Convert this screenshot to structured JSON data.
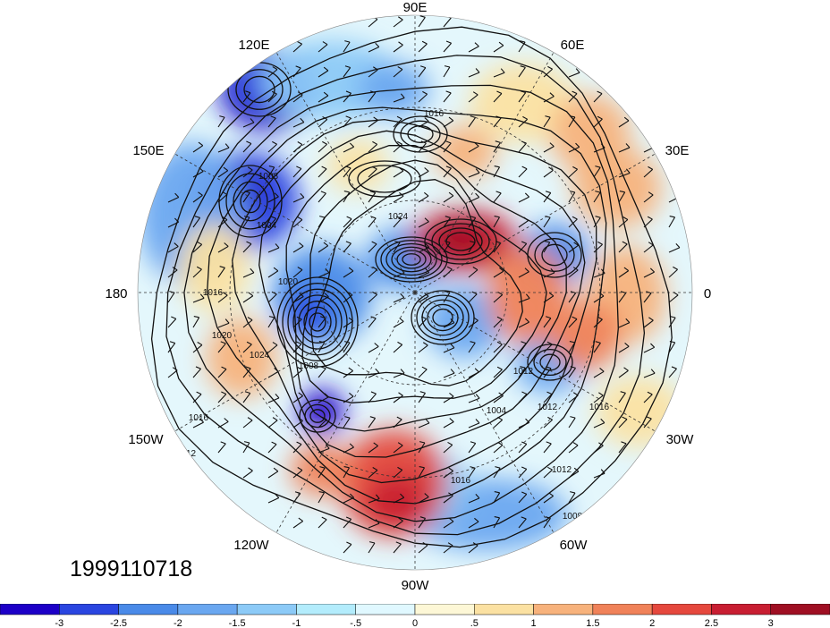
{
  "map": {
    "projection": "north-polar-stereographic",
    "longitude_labels": [
      "90E",
      "60E",
      "30E",
      "0",
      "30W",
      "60W",
      "90W",
      "120W",
      "150W",
      "180",
      "150E",
      "120E"
    ],
    "contour_labels": [
      "1016",
      "1008",
      "1004",
      "1024",
      "1020",
      "1016",
      "1020",
      "1024",
      "1008",
      "1016",
      "1012",
      "1012",
      "1004",
      "1012",
      "1016",
      "1012",
      "1008",
      "1016"
    ],
    "contour_interval": 4,
    "field_description_shown": false
  },
  "date_stamp": "1999110718",
  "colorbar": {
    "colors": [
      "#1d00c7",
      "#2a45e0",
      "#4a8ae8",
      "#6aa7f0",
      "#8ccaf7",
      "#b3ecfc",
      "#e0f8ff",
      "#fdf7d6",
      "#fbe1a2",
      "#f7b27c",
      "#f08259",
      "#e5483d",
      "#c81e32",
      "#9f0f23"
    ],
    "tick_labels": [
      "-3",
      "-2.5",
      "-2",
      "-1.5",
      "-1",
      "-.5",
      "0",
      ".5",
      "1",
      "1.5",
      "2",
      "2.5",
      "3"
    ]
  }
}
